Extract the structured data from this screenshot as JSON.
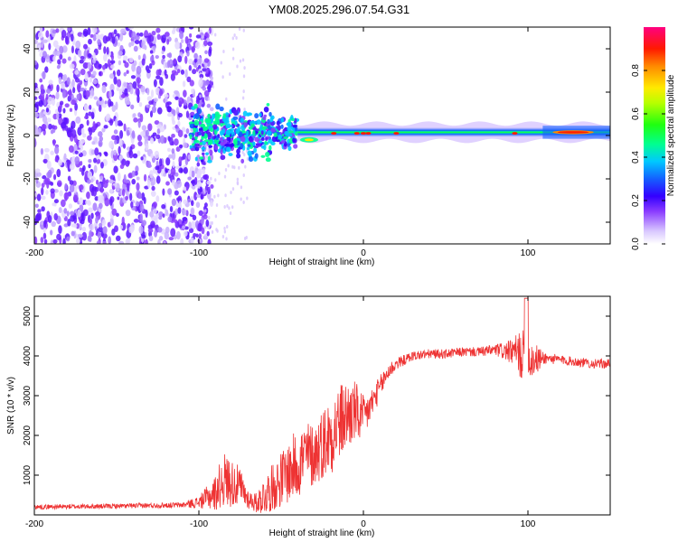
{
  "title": "YM08.2025.296.07.54.G31",
  "chart_data": [
    {
      "id": "spectrogram",
      "type": "heatmap",
      "title": "YM08.2025.296.07.54.G31",
      "xlabel": "Height of straight line (km)",
      "ylabel": "Frequency (Hz)",
      "xlim": [
        -200,
        150
      ],
      "ylim": [
        -50,
        50
      ],
      "xticks": [
        -200,
        -100,
        0,
        100
      ],
      "xtick_labels": [
        "-200",
        "-100",
        "0",
        "100"
      ],
      "yticks": [
        -40,
        -20,
        0,
        20,
        40
      ],
      "ytick_labels": [
        "-40",
        "-20",
        "0",
        "20",
        "40"
      ],
      "colorbar": {
        "label": "Normalized spectral amplitude",
        "range": [
          0,
          1
        ],
        "ticks": [
          0.0,
          0.2,
          0.4,
          0.6,
          0.8
        ],
        "tick_labels": [
          "0.0",
          "0.2",
          "0.4",
          "0.6",
          "0.8"
        ]
      },
      "regions": [
        {
          "name": "noise-scatter",
          "x_range": [
            -200,
            -100
          ],
          "freq_range": [
            -50,
            50
          ],
          "amplitude": 0.15
        },
        {
          "name": "transition-blob",
          "x_range": [
            -105,
            -40
          ],
          "freq_range": [
            -15,
            15
          ],
          "amplitude": 0.4
        },
        {
          "name": "center-line",
          "x_range": [
            -40,
            150
          ],
          "freq_center": 1.5,
          "amplitude": 0.45
        },
        {
          "name": "peak-segment",
          "x_range": [
            115,
            140
          ],
          "freq_center": 1.5,
          "amplitude": 0.9
        }
      ]
    },
    {
      "id": "snr",
      "type": "line",
      "xlabel": "Height of straight line (km)",
      "ylabel": "SNR (10 * v/v)",
      "xlim": [
        -200,
        150
      ],
      "ylim": [
        0,
        5500
      ],
      "xticks": [
        -200,
        -100,
        0,
        100
      ],
      "xtick_labels": [
        "-200",
        "-100",
        "0",
        "100"
      ],
      "yticks": [
        1000,
        2000,
        3000,
        4000,
        5000
      ],
      "ytick_labels": [
        "1000",
        "2000",
        "3000",
        "4000",
        "5000"
      ],
      "series": [
        {
          "name": "SNR",
          "color": "#ee3333",
          "envelope_x": [
            -200,
            -150,
            -110,
            -100,
            -90,
            -85,
            -80,
            -75,
            -70,
            -65,
            -60,
            -55,
            -50,
            -45,
            -40,
            -35,
            -30,
            -25,
            -20,
            -15,
            -10,
            -5,
            0,
            5,
            10,
            15,
            20,
            30,
            40,
            50,
            60,
            70,
            80,
            90,
            95,
            100,
            105,
            110,
            120,
            130,
            140,
            150
          ],
          "envelope_mean": [
            200,
            220,
            250,
            320,
            550,
            900,
            800,
            700,
            400,
            300,
            500,
            700,
            900,
            1100,
            1300,
            1500,
            1500,
            1800,
            2000,
            2300,
            2500,
            2600,
            2400,
            2800,
            3200,
            3600,
            3800,
            4000,
            4050,
            4050,
            4100,
            4100,
            4150,
            4100,
            4050,
            3950,
            3900,
            3950,
            3900,
            3850,
            3800,
            3800
          ],
          "envelope_noise": [
            60,
            60,
            70,
            150,
            450,
            700,
            600,
            500,
            250,
            250,
            500,
            600,
            700,
            800,
            900,
            900,
            800,
            900,
            1000,
            1000,
            900,
            800,
            600,
            400,
            300,
            250,
            150,
            120,
            120,
            120,
            120,
            120,
            150,
            300,
            600,
            700,
            400,
            150,
            120,
            120,
            120,
            120
          ]
        }
      ]
    }
  ],
  "colors": {
    "line": "#ee3333",
    "axes": "#000000"
  }
}
